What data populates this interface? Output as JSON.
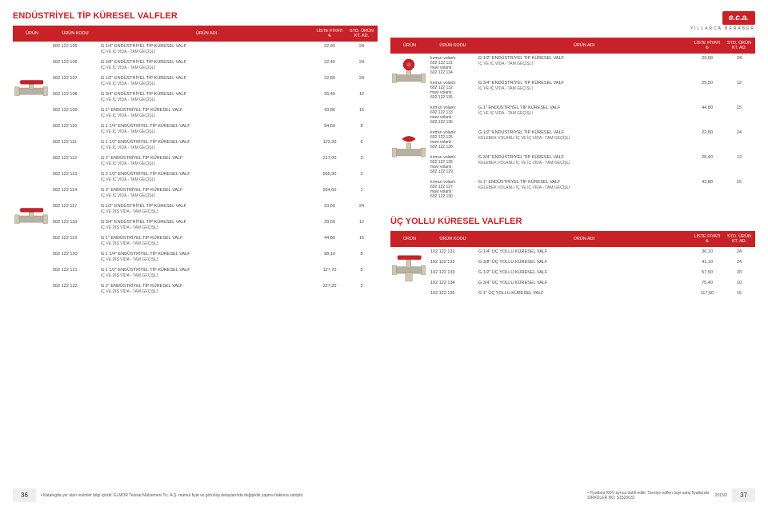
{
  "brand": {
    "logo": "e.c.a.",
    "tagline": "YILLARCA BERABER"
  },
  "section_titles": {
    "industrial": "ENDÜSTRİYEL TİP KÜRESEL VALFLER",
    "three_way": "ÜÇ YOLLU KÜRESEL VALFLER"
  },
  "table_headers": {
    "urun": "ÜRÜN",
    "kodu": "ÜRÜN KODU",
    "adi": "ÜRÜN ADI",
    "fiyat": "LİSTE FİYATI ₺",
    "adet": "STD. ÜRÜN KT. AD."
  },
  "left_rows": [
    {
      "code": "602 122 105",
      "desc": "G 1/4\" ENDÜSTRİYEL TİP KÜRESEL VALF",
      "sub": "İÇ VE İÇ VİDA - TAM GEÇİŞLİ",
      "price": "22,00",
      "qty": "24"
    },
    {
      "code": "602 122 106",
      "desc": "G 3/8\" ENDÜSTRİYEL TİP KÜRESEL VALF",
      "sub": "İÇ VE İÇ VİDA - TAM GEÇİŞLİ",
      "price": "22,40",
      "qty": "24"
    },
    {
      "code": "602 122 107",
      "desc": "G 1/2\" ENDÜSTRİYEL TİP KÜRESEL VALF",
      "sub": "İÇ VE İÇ VİDA - TAM GEÇİŞLİ",
      "price": "22,80",
      "qty": "24"
    },
    {
      "code": "602 122 108",
      "desc": "G 3/4\" ENDÜSTRİYEL TİP KÜRESEL VALF",
      "sub": "İÇ VE İÇ VİDA - TAM GEÇİŞLİ",
      "price": "25,40",
      "qty": "12"
    },
    {
      "code": "602 122 109",
      "desc": "G 1\" ENDÜSTRİYEL TİP KÜRESEL VALF",
      "sub": "İÇ VE İÇ VİDA - TAM GEÇİŞLİ",
      "price": "43,80",
      "qty": "15"
    },
    {
      "code": "602 122 110",
      "desc": "G 1 1/4\" ENDÜSTRİYEL TİP KÜRESEL VALF",
      "sub": "İÇ VE İÇ VİDA - TAM GEÇİŞLİ",
      "price": "94,60",
      "qty": "8"
    },
    {
      "code": "602 122 111",
      "desc": "G 1 1/2\" ENDÜSTRİYEL TİP KÜRESEL VALF",
      "sub": "İÇ VE İÇ VİDA - TAM GEÇİŞLİ",
      "price": "123,20",
      "qty": "6"
    },
    {
      "code": "602 122 112",
      "desc": "G 2\" ENDÜSTRİYEL TİP KÜRESEL VALF",
      "sub": "İÇ VE İÇ VİDA - TAM GEÇİŞLİ",
      "price": "217,00",
      "qty": "3"
    },
    {
      "code": "602 122 113",
      "desc": "G 2 1/2\" ENDÜSTRİYEL TİP KÜRESEL VALF",
      "sub": "İÇ VE İÇ VİDA - TAM GEÇİŞLİ",
      "price": "559,30",
      "qty": "2"
    },
    {
      "code": "602 122 114",
      "desc": "G 3\" ENDÜSTRİYEL TİP KÜRESEL VALF",
      "sub": "İÇ VE İÇ VİDA - TAM GEÇİŞLİ",
      "price": "934,60",
      "qty": "1"
    },
    {
      "code": "602 122 117",
      "desc": "G 1/2\" ENDÜSTRİYEL TİP KÜRESEL VALF",
      "sub": "İÇ VE DIŞ VİDA - TAM GEÇİŞLİ",
      "price": "23,60",
      "qty": "24"
    },
    {
      "code": "602 122 118",
      "desc": "G 3/4\" ENDÜSTRİYEL TİP KÜRESEL VALF",
      "sub": "İÇ VE DIŞ VİDA - TAM GEÇİŞLİ",
      "price": "29,50",
      "qty": "12"
    },
    {
      "code": "602 122 119",
      "desc": "G 1\" ENDÜSTRİYEL TİP KÜRESEL VALF",
      "sub": "İÇ VE DIŞ VİDA - TAM GEÇİŞLİ",
      "price": "44,80",
      "qty": "15"
    },
    {
      "code": "602 122 120",
      "desc": "G 1 1/4\" ENDÜSTRİYEL TİP KÜRESEL VALF",
      "sub": "İÇ VE DIŞ VİDA - TAM GEÇİŞLİ",
      "price": "98,10",
      "qty": "8"
    },
    {
      "code": "602 122 121",
      "desc": "G 1 1/2\" ENDÜSTRİYEL TİP KÜRESEL VALF",
      "sub": "İÇ VE DIŞ VİDA - TAM GEÇİŞLİ",
      "price": "127,70",
      "qty": "6"
    },
    {
      "code": "602 122 122",
      "desc": "G 2\" ENDÜSTRİYEL TİP KÜRESEL VALF",
      "sub": "İÇ VE DIŞ VİDA - TAM GEÇİŞLİ",
      "price": "227,20",
      "qty": "3"
    }
  ],
  "right_rows": [
    {
      "variant_labels": [
        "kırmızı volanlı:",
        "602 122 131",
        "mavi volanlı:",
        "602 122 134"
      ],
      "desc": "G 1/2\" ENDÜSTRİYEL TİP KÜRESEL VALF",
      "sub": "İÇ VE İÇ VİDA - TAM GEÇİŞLİ",
      "price": "23,60",
      "qty": "24"
    },
    {
      "variant_labels": [
        "kırmızı volanlı:",
        "602 122 132",
        "mavi volanlı:",
        "602 122 135"
      ],
      "desc": "G 3/4\" ENDÜSTRİYEL TİP KÜRESEL VALF",
      "sub": "İÇ VE İÇ VİDA - TAM GEÇİŞLİ",
      "price": "29,50",
      "qty": "12"
    },
    {
      "variant_labels": [
        "kırmızı volanlı:",
        "602 122 133",
        "mavi volanlı:",
        "602 122 136"
      ],
      "desc": "G 1\" ENDÜSTRİYEL TİP KÜRESEL VALF",
      "sub": "İÇ VE İÇ VİDA - TAM GEÇİŞLİ",
      "price": "44,80",
      "qty": "15"
    },
    {
      "variant_labels": [
        "kırmızı volanlı:",
        "602 122 125",
        "mavi volanlı:",
        "602 122 128"
      ],
      "desc": "G 1/2\" ENDÜSTRİYEL TİP KÜRESEL VALF",
      "sub": "KELEBEK VOLANLI İÇ VE İÇ VİDA - TAM GEÇİŞLİ",
      "price": "22,80",
      "qty": "24"
    },
    {
      "variant_labels": [
        "kırmızı volanlı:",
        "602 122 126",
        "mavi volanlı:",
        "602 122 129"
      ],
      "desc": "G 3/4\" ENDÜSTRİYEL TİP KÜRESEL VALF",
      "sub": "KELEBEK VOLANLI İÇ VE İÇ VİDA - TAM GEÇİŞLİ",
      "price": "28,40",
      "qty": "12"
    },
    {
      "variant_labels": [
        "kırmızı volanlı:",
        "602 122 127",
        "mavi volanlı:",
        "602 122 130"
      ],
      "desc": "G 1\" ENDÜSTRİYEL TİP KÜRESEL VALF",
      "sub": "KELEBEK VOLANLI İÇ VE İÇ VİDA - TAM GEÇİŞLİ",
      "price": "43,80",
      "qty": "15"
    }
  ],
  "three_way_rows": [
    {
      "code": "102 122 131",
      "desc": "G 1/4\" ÜÇ YOLLU KÜRESEL VALF",
      "price": "36,10",
      "qty": "24"
    },
    {
      "code": "102 122 132",
      "desc": "G 3/8\" ÜÇ YOLLU KÜRESEL VALF",
      "price": "41,10",
      "qty": "24"
    },
    {
      "code": "102 122 133",
      "desc": "G 1/2\" ÜÇ YOLLU KÜRESEL VALF",
      "price": "57,50",
      "qty": "20"
    },
    {
      "code": "102 122 134",
      "desc": "G 3/4\" ÜÇ YOLLU KÜRESEL VALF",
      "price": "75,40",
      "qty": "10"
    },
    {
      "code": "102 122 135",
      "desc": "G 1\" ÜÇ YOLLU KÜRESEL VALF",
      "price": "117,60",
      "qty": "15"
    }
  ],
  "footer": {
    "left_page": "36",
    "right_page": "37",
    "left_note": "• Katalogda yer alan resimler bilgi içindir. ELMOR Tesisat Malzemesi Tic. A.Ş. mamul fiyat ve görünüş detaylarında değişiklik yapma hakkına sahiptir.",
    "right_note1": "• Fiyatlara KDV ayrıca dahil edilir. Tavsiye edilen bayi satış fiyatlarıdır.",
    "right_note2": "SİRKÜLER NO: S1520032",
    "right_date": "2015/2"
  }
}
